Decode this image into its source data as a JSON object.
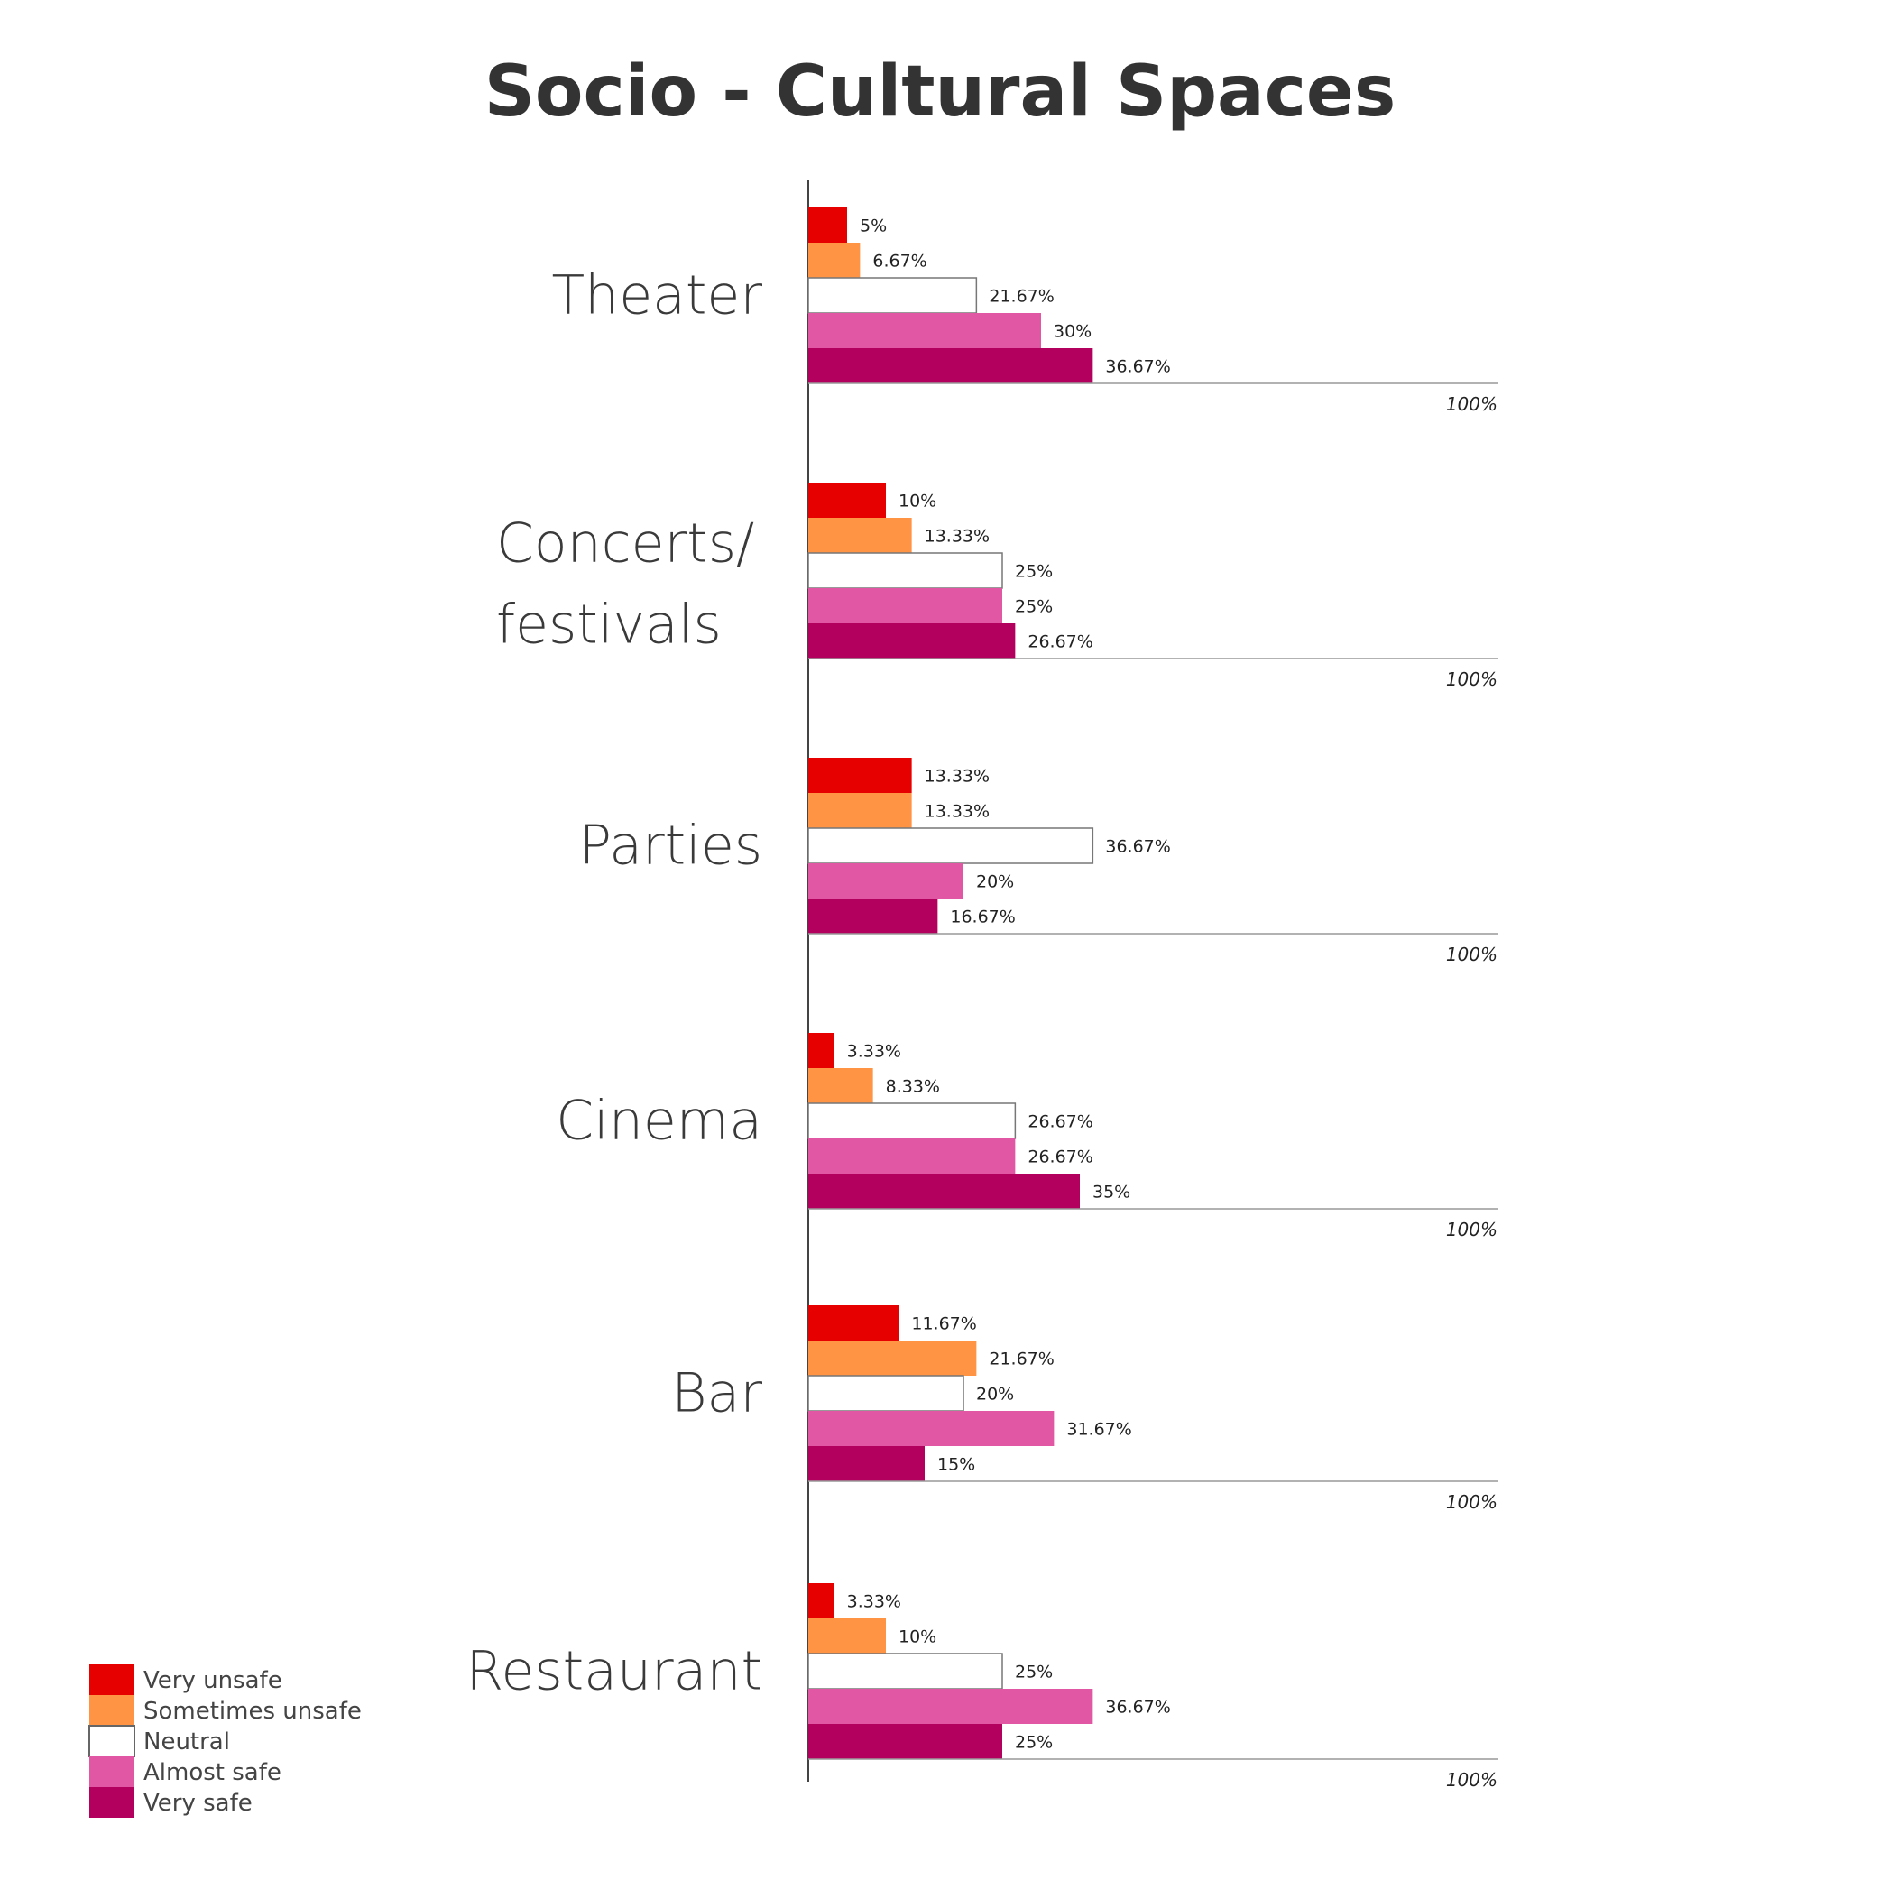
{
  "chart_data": {
    "type": "bar",
    "orientation": "horizontal",
    "title": "Socio - Cultural Spaces",
    "categories": [
      "Theater",
      "Concerts/ festivals",
      "Parties",
      "Cinema",
      "Bar",
      "Restaurant"
    ],
    "category_lines": [
      [
        "Theater"
      ],
      [
        "Concerts/",
        "festivals"
      ],
      [
        "Parties"
      ],
      [
        "Cinema"
      ],
      [
        "Bar"
      ],
      [
        "Restaurant"
      ]
    ],
    "series": [
      {
        "name": "Very unsafe",
        "color": "#e60000",
        "values": [
          5,
          10,
          13.33,
          3.33,
          11.67,
          3.33
        ]
      },
      {
        "name": "Sometimes unsafe",
        "color": "#ff9444",
        "values": [
          6.67,
          13.33,
          13.33,
          8.33,
          21.67,
          10
        ]
      },
      {
        "name": "Neutral",
        "color": "#ffffff",
        "values": [
          21.67,
          25,
          36.67,
          26.67,
          20,
          25
        ]
      },
      {
        "name": "Almost safe",
        "color": "#e157a4",
        "values": [
          30,
          25,
          20,
          26.67,
          31.67,
          36.67
        ]
      },
      {
        "name": "Very safe",
        "color": "#b3005f",
        "values": [
          36.67,
          26.67,
          16.67,
          35,
          15,
          25
        ]
      }
    ],
    "value_suffix": "%",
    "reference_label": "100%",
    "xlim": [
      0,
      100
    ],
    "grid": false,
    "legend_position": "bottom-left"
  }
}
